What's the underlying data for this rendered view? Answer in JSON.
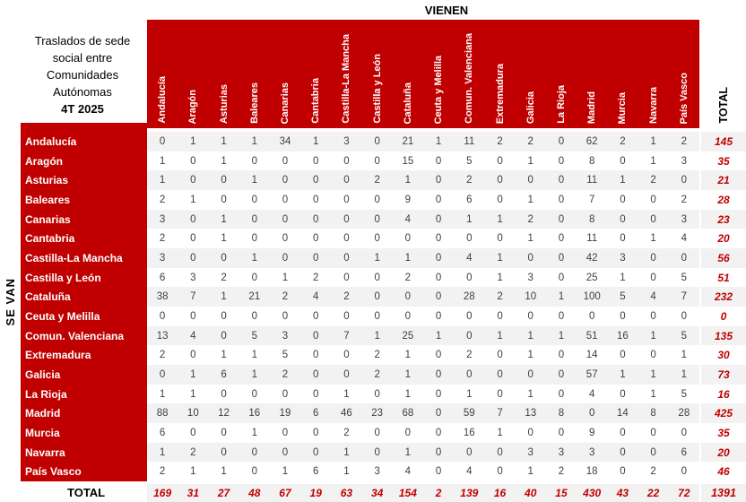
{
  "title_block": {
    "line1": "Traslados de sede",
    "line2": "social entre",
    "line3": "Comunidades",
    "line4": "Autónomas",
    "period": "4T 2025"
  },
  "axes": {
    "columns_label": "VIENEN",
    "rows_label": "SE VAN"
  },
  "totals": {
    "row_label": "TOTAL",
    "column_label": "TOTAL"
  },
  "colors": {
    "brand_red": "#C00000",
    "stripe_gray": "#F2F2F2",
    "data_text": "#3F3F3F",
    "total_red": "#C00000"
  },
  "chart_data": {
    "type": "table",
    "title": "Traslados de sede social entre Comunidades Autónomas 4T 2025",
    "column_axis_label": "VIENEN",
    "row_axis_label": "SE VAN",
    "columns": [
      "Andalucía",
      "Aragón",
      "Asturias",
      "Baleares",
      "Canarias",
      "Cantabria",
      "Castilla-La Mancha",
      "Castilla y León",
      "Cataluña",
      "Ceuta y Melilla",
      "Comun. Valenciana",
      "Extremadura",
      "Galicia",
      "La Rioja",
      "Madrid",
      "Murcia",
      "Navarra",
      "País Vasco"
    ],
    "rows": [
      {
        "name": "Andalucía",
        "values": [
          0,
          1,
          1,
          1,
          34,
          1,
          3,
          0,
          21,
          1,
          11,
          2,
          2,
          0,
          62,
          2,
          1,
          2
        ],
        "total": 145
      },
      {
        "name": "Aragón",
        "values": [
          1,
          0,
          1,
          0,
          0,
          0,
          0,
          0,
          15,
          0,
          5,
          0,
          1,
          0,
          8,
          0,
          1,
          3
        ],
        "total": 35
      },
      {
        "name": "Asturias",
        "values": [
          1,
          0,
          0,
          1,
          0,
          0,
          0,
          2,
          1,
          0,
          2,
          0,
          0,
          0,
          11,
          1,
          2,
          0
        ],
        "total": 21
      },
      {
        "name": "Baleares",
        "values": [
          2,
          1,
          0,
          0,
          0,
          0,
          0,
          0,
          9,
          0,
          6,
          0,
          1,
          0,
          7,
          0,
          0,
          2
        ],
        "total": 28
      },
      {
        "name": "Canarias",
        "values": [
          3,
          0,
          1,
          0,
          0,
          0,
          0,
          0,
          4,
          0,
          1,
          1,
          2,
          0,
          8,
          0,
          0,
          3
        ],
        "total": 23
      },
      {
        "name": "Cantabria",
        "values": [
          2,
          0,
          1,
          0,
          0,
          0,
          0,
          0,
          0,
          0,
          0,
          0,
          1,
          0,
          11,
          0,
          1,
          4
        ],
        "total": 20
      },
      {
        "name": "Castilla-La Mancha",
        "values": [
          3,
          0,
          0,
          1,
          0,
          0,
          0,
          1,
          1,
          0,
          4,
          1,
          0,
          0,
          42,
          3,
          0,
          0
        ],
        "total": 56
      },
      {
        "name": "Castilla y León",
        "values": [
          6,
          3,
          2,
          0,
          1,
          2,
          0,
          0,
          2,
          0,
          0,
          1,
          3,
          0,
          25,
          1,
          0,
          5
        ],
        "total": 51
      },
      {
        "name": "Cataluña",
        "values": [
          38,
          7,
          1,
          21,
          2,
          4,
          2,
          0,
          0,
          0,
          28,
          2,
          10,
          1,
          100,
          5,
          4,
          7
        ],
        "total": 232
      },
      {
        "name": "Ceuta y Melilla",
        "values": [
          0,
          0,
          0,
          0,
          0,
          0,
          0,
          0,
          0,
          0,
          0,
          0,
          0,
          0,
          0,
          0,
          0,
          0
        ],
        "total": 0
      },
      {
        "name": "Comun. Valenciana",
        "values": [
          13,
          4,
          0,
          5,
          3,
          0,
          7,
          1,
          25,
          1,
          0,
          1,
          1,
          1,
          51,
          16,
          1,
          5
        ],
        "total": 135
      },
      {
        "name": "Extremadura",
        "values": [
          2,
          0,
          1,
          1,
          5,
          0,
          0,
          2,
          1,
          0,
          2,
          0,
          1,
          0,
          14,
          0,
          0,
          1
        ],
        "total": 30
      },
      {
        "name": "Galicia",
        "values": [
          0,
          1,
          6,
          1,
          2,
          0,
          0,
          2,
          1,
          0,
          0,
          0,
          0,
          0,
          57,
          1,
          1,
          1
        ],
        "total": 73
      },
      {
        "name": "La Rioja",
        "values": [
          1,
          1,
          0,
          0,
          0,
          0,
          1,
          0,
          1,
          0,
          1,
          0,
          1,
          0,
          4,
          0,
          1,
          5
        ],
        "total": 16
      },
      {
        "name": "Madrid",
        "values": [
          88,
          10,
          12,
          16,
          19,
          6,
          46,
          23,
          68,
          0,
          59,
          7,
          13,
          8,
          0,
          14,
          8,
          28
        ],
        "total": 425
      },
      {
        "name": "Murcia",
        "values": [
          6,
          0,
          0,
          1,
          0,
          0,
          2,
          0,
          0,
          0,
          16,
          1,
          0,
          0,
          9,
          0,
          0,
          0
        ],
        "total": 35
      },
      {
        "name": "Navarra",
        "values": [
          1,
          2,
          0,
          0,
          0,
          0,
          1,
          0,
          1,
          0,
          0,
          0,
          3,
          3,
          3,
          0,
          0,
          6
        ],
        "total": 20
      },
      {
        "name": "País Vasco",
        "values": [
          2,
          1,
          1,
          0,
          1,
          6,
          1,
          3,
          4,
          0,
          4,
          0,
          1,
          2,
          18,
          0,
          2,
          0
        ],
        "total": 46
      }
    ],
    "column_totals": [
      169,
      31,
      27,
      48,
      67,
      19,
      63,
      34,
      154,
      2,
      139,
      16,
      40,
      15,
      430,
      43,
      22,
      72
    ],
    "grand_total": 1391
  }
}
